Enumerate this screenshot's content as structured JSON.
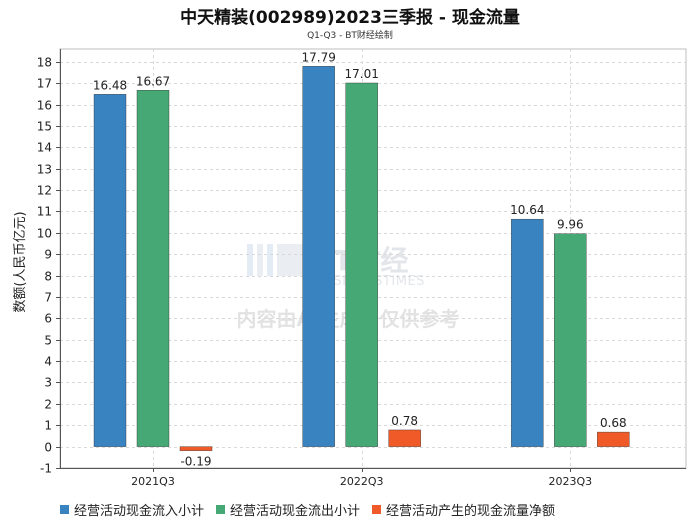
{
  "chart_data": {
    "type": "bar",
    "title": "中天精装(002989)2023三季报 - 现金流量",
    "subtitle": "Q1-Q3 - BT财经绘制",
    "ylabel": "数额(人民币亿元)",
    "xlabel": "",
    "categories": [
      "2021Q3",
      "2022Q3",
      "2023Q3"
    ],
    "ylim": [
      -1,
      18.6
    ],
    "yticks": [
      -1,
      0,
      1,
      2,
      3,
      4,
      5,
      6,
      7,
      8,
      9,
      10,
      11,
      12,
      13,
      14,
      15,
      16,
      17,
      18
    ],
    "grid": true,
    "legend_position": "bottom",
    "series": [
      {
        "name": "经营活动现金流入小计",
        "color": "#3a83c1",
        "values": [
          16.48,
          17.79,
          10.64
        ],
        "labels": [
          "16.48",
          "17.79",
          "10.64"
        ]
      },
      {
        "name": "经营活动现金流出小计",
        "color": "#46a874",
        "values": [
          16.67,
          17.01,
          9.96
        ],
        "labels": [
          "16.67",
          "17.01",
          "9.96"
        ]
      },
      {
        "name": "经营活动产生的现金流量净额",
        "color": "#f05a28",
        "values": [
          -0.19,
          0.78,
          0.68
        ],
        "labels": [
          "-0.19",
          "0.78",
          "0.68"
        ]
      }
    ]
  },
  "watermark": {
    "brand_cn": "BT财经",
    "brand_en": "BUSINESSTIMES",
    "notice": "内容由AI生成，仅供参考"
  }
}
